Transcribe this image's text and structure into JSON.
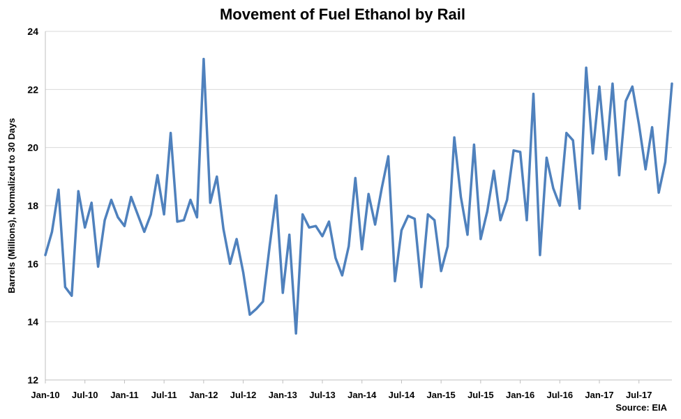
{
  "chart_data": {
    "type": "line",
    "title": "Movement of Fuel Ethanol by Rail",
    "xlabel": "",
    "ylabel": "Barrels (Millions), Normalized to 30 Days",
    "ylim": [
      12,
      24
    ],
    "yticks": [
      12,
      14,
      16,
      18,
      20,
      22,
      24
    ],
    "grid": true,
    "legend": "none",
    "source": "Source: EIA",
    "x_tick_labels": [
      "Jan-10",
      "Jul-10",
      "Jan-11",
      "Jul-11",
      "Jan-12",
      "Jul-12",
      "Jan-13",
      "Jul-13",
      "Jan-14",
      "Jul-14",
      "Jan-15",
      "Jul-15",
      "Jan-16",
      "Jul-16",
      "Jan-17",
      "Jul-17"
    ],
    "line_color": "#4f81bd",
    "series": [
      {
        "values": [
          16.3,
          17.1,
          18.55,
          15.2,
          14.9,
          18.5,
          17.25,
          18.1,
          15.9,
          17.5,
          18.2,
          17.6,
          17.3,
          18.3,
          17.7,
          17.1,
          17.7,
          19.05,
          17.7,
          20.5,
          17.45,
          17.5,
          18.2,
          17.6,
          23.05,
          18.1,
          19.0,
          17.2,
          16.0,
          16.85,
          15.7,
          14.25,
          14.45,
          14.7,
          16.6,
          18.35,
          15.0,
          17.0,
          13.6,
          17.7,
          17.25,
          17.3,
          16.95,
          17.45,
          16.2,
          15.6,
          16.6,
          18.95,
          16.5,
          18.4,
          17.35,
          18.6,
          19.7,
          15.4,
          17.15,
          17.65,
          17.55,
          15.2,
          17.7,
          17.5,
          15.75,
          16.6,
          20.35,
          18.3,
          17.0,
          20.1,
          16.85,
          17.8,
          19.2,
          17.5,
          18.2,
          19.9,
          19.85,
          17.5,
          21.85,
          16.3,
          19.65,
          18.6,
          18.0,
          20.5,
          20.25,
          17.9,
          22.75,
          19.8,
          22.1,
          19.6,
          22.2,
          19.05,
          21.6,
          22.1,
          20.8,
          19.25,
          20.7,
          18.45,
          19.5,
          22.2
        ]
      }
    ]
  }
}
